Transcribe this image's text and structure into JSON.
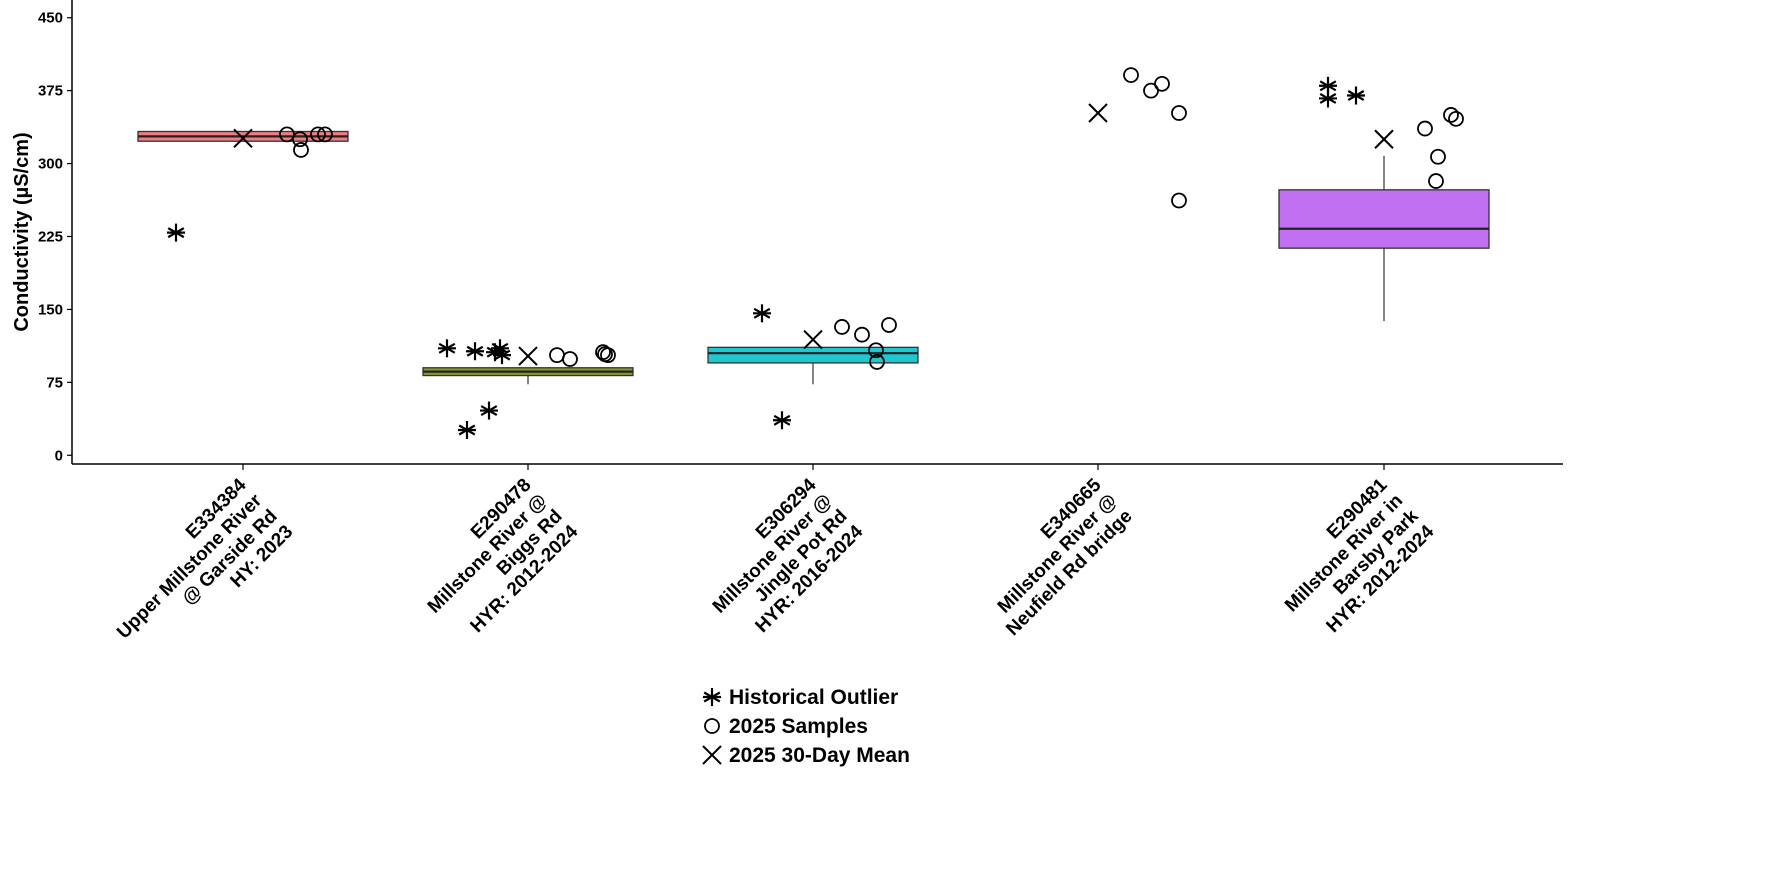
{
  "chart_data": {
    "type": "box",
    "ylabel": "Conductivity (µS/cm)",
    "ylim": [
      -10,
      460
    ],
    "yticks": [
      0,
      75,
      150,
      225,
      300,
      375,
      450
    ],
    "grid": false,
    "legend_position": "bottom",
    "legend": [
      {
        "symbol": "asterisk",
        "label": "Historical Outlier"
      },
      {
        "symbol": "circle",
        "label": "2025 Samples"
      },
      {
        "symbol": "cross",
        "label": "2025 30-Day Mean"
      }
    ],
    "categories": [
      {
        "label_lines": [
          "E334384",
          "Upper Millstone River",
          "@ Garside Rd",
          "HY: 2023"
        ],
        "color": "#f07c82",
        "box": {
          "q1": 323,
          "median": 328,
          "q3": 333,
          "whisker_low": 323,
          "whisker_high": 333
        },
        "historical_outliers": [
          229
        ],
        "samples_2025": [
          330,
          325,
          314,
          330,
          330
        ],
        "mean_30day": 326
      },
      {
        "label_lines": [
          "E290478",
          "Millstone River @",
          "Biggs Rd",
          "HYR: 2012-2024"
        ],
        "color": "#8a9a2a",
        "box": {
          "q1": 82,
          "median": 86,
          "q3": 90,
          "whisker_low": 73,
          "whisker_high": 90
        },
        "historical_outliers": [
          110,
          107,
          106,
          110,
          103,
          26,
          46
        ],
        "samples_2025": [
          103,
          99,
          106,
          104,
          103
        ],
        "mean_30day": 102
      },
      {
        "label_lines": [
          "E306294",
          "Millstone River @",
          "Jingle Pot Rd",
          "HYR: 2016-2024"
        ],
        "color": "#1fc8d0",
        "box": {
          "q1": 95,
          "median": 105,
          "q3": 111,
          "whisker_low": 73,
          "whisker_high": 111
        },
        "historical_outliers": [
          146,
          36
        ],
        "samples_2025": [
          132,
          124,
          134,
          108,
          96
        ],
        "mean_30day": 119
      },
      {
        "label_lines": [
          "E340665",
          "Millstone River @",
          "Neufield Rd bridge"
        ],
        "color": "#cccccc",
        "box": null,
        "historical_outliers": [],
        "samples_2025": [
          391,
          375,
          382,
          352,
          262
        ],
        "mean_30day": 352
      },
      {
        "label_lines": [
          "E290481",
          "Millstone River in",
          "Barsby Park",
          "HYR: 2012-2024"
        ],
        "color": "#c070f0",
        "box": {
          "q1": 213,
          "median": 233,
          "q3": 273,
          "whisker_low": 138,
          "whisker_high": 308
        },
        "historical_outliers": [
          380,
          367,
          370
        ],
        "samples_2025": [
          336,
          350,
          346,
          307,
          282
        ],
        "mean_30day": 325
      }
    ]
  }
}
